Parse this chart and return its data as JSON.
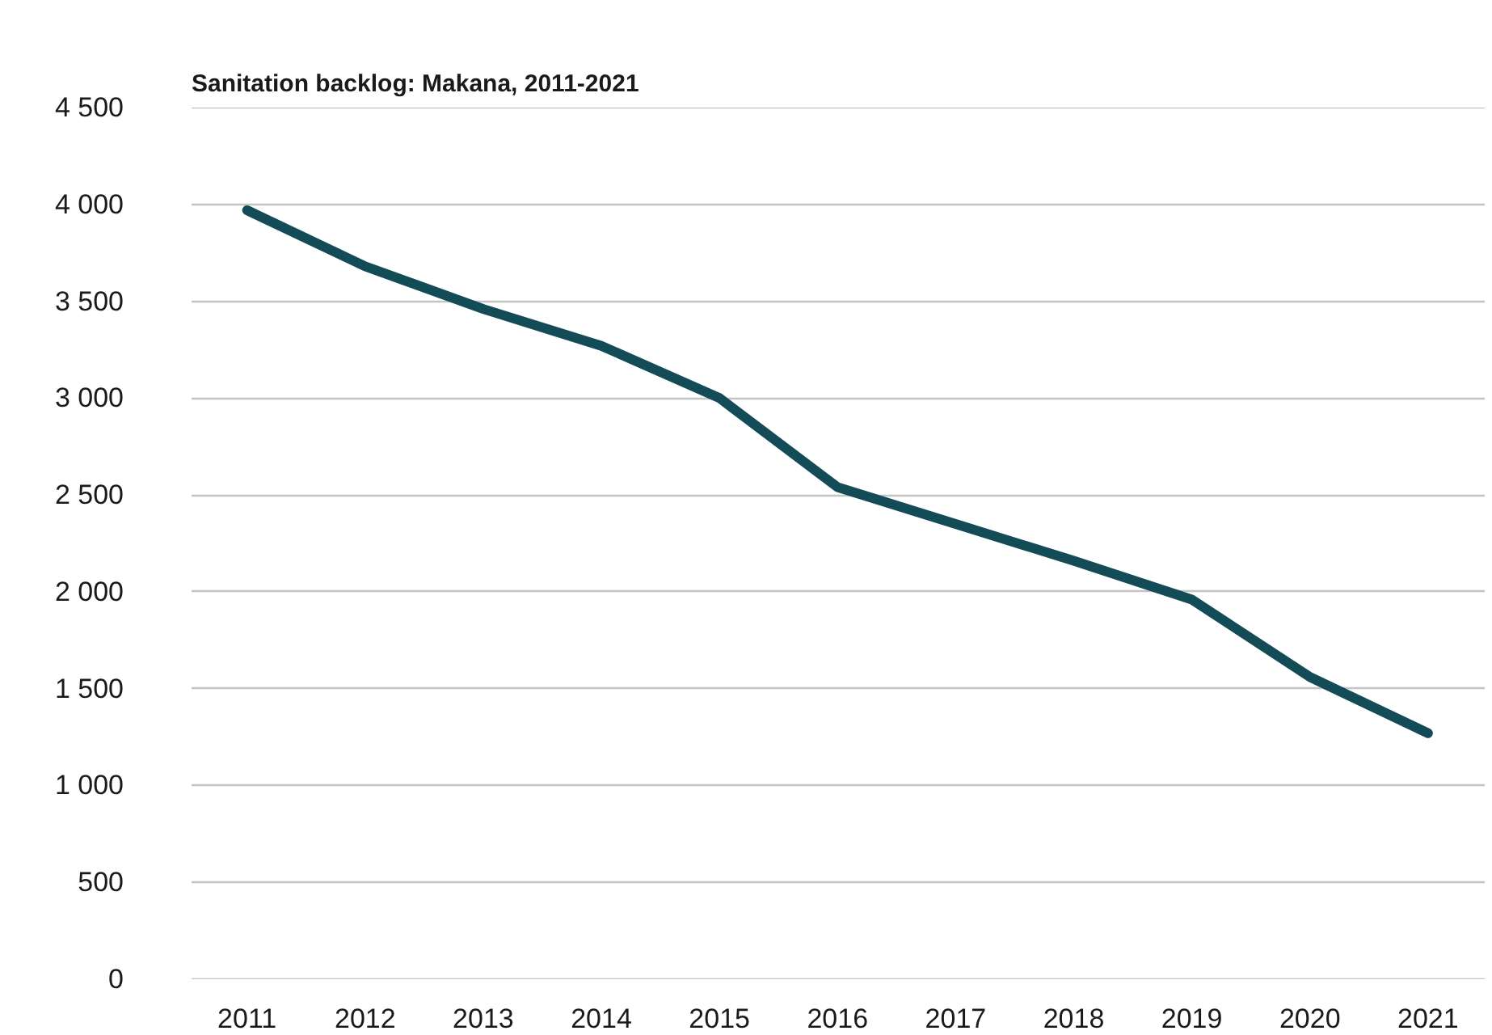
{
  "chart_data": {
    "type": "line",
    "title": "Sanitation backlog: Makana, 2011-2021",
    "categories": [
      "2011",
      "2012",
      "2013",
      "2014",
      "2015",
      "2016",
      "2017",
      "2018",
      "2019",
      "2020",
      "2021"
    ],
    "series": [
      {
        "color": "#134c57",
        "values": [
          3970,
          3680,
          3460,
          3270,
          3000,
          2540,
          2350,
          2160,
          1960,
          1560,
          1270
        ]
      }
    ],
    "ylim": [
      0,
      4500
    ],
    "yticks": [
      0,
      500,
      {
        "value": 1000,
        "label": "1 000"
      },
      {
        "value": 1500,
        "label": "1 500"
      },
      {
        "value": 2000,
        "label": "2 000"
      },
      {
        "value": 2500,
        "label": "2 500"
      },
      {
        "value": 3000,
        "label": "3 000"
      },
      {
        "value": 3500,
        "label": "3 500"
      },
      {
        "value": 4000,
        "label": "4 000"
      },
      {
        "value": 4500,
        "label": "4 500"
      }
    ],
    "grid": "y",
    "line_style": "solid"
  }
}
